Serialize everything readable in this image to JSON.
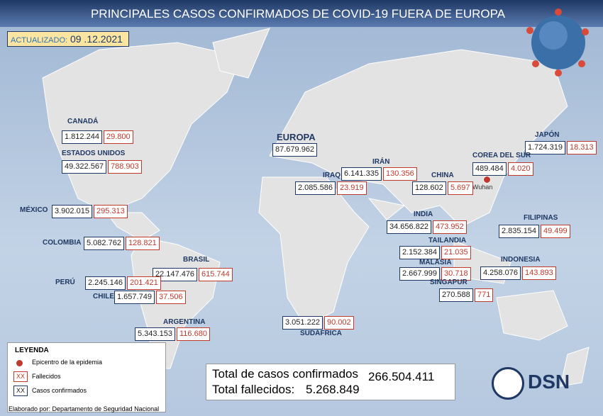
{
  "header": {
    "title": "PRINCIPALES CASOS CONFIRMADOS DE COVID-19 FUERA DE EUROPA",
    "updated_label": "ACTUALIZADO:",
    "updated_date": "09 .12.2021"
  },
  "countries": [
    {
      "name": "CANADÁ",
      "confirmed": "1.812.244",
      "deaths": "29.800"
    },
    {
      "name": "ESTADOS UNIDOS",
      "confirmed": "49.322.567",
      "deaths": "788.903"
    },
    {
      "name": "MÉXICO",
      "confirmed": "3.902.015",
      "deaths": "295.313"
    },
    {
      "name": "COLOMBIA",
      "confirmed": "5.082.762",
      "deaths": "128.821"
    },
    {
      "name": "BRASIL",
      "confirmed": "22.147.476",
      "deaths": "615.744"
    },
    {
      "name": "PERÚ",
      "confirmed": "2.245.146",
      "deaths": "201.421"
    },
    {
      "name": "CHILE",
      "confirmed": "1.657.749",
      "deaths": "37.506"
    },
    {
      "name": "ARGENTINA",
      "confirmed": "5.343.153",
      "deaths": "116.680"
    },
    {
      "name": "EUROPA",
      "confirmed": "87.679.962"
    },
    {
      "name": "IRÁN",
      "confirmed": "6.141.335",
      "deaths": "130.356"
    },
    {
      "name": "IRAQ",
      "confirmed": "2.085.586",
      "deaths": "23.919"
    },
    {
      "name": "CHINA",
      "confirmed": "128.602",
      "deaths": "5.697"
    },
    {
      "name": "JAPÓN",
      "confirmed": "1.724.319",
      "deaths": "18.313"
    },
    {
      "name": "COREA DEL SUR",
      "confirmed": "489.484",
      "deaths": "4.020"
    },
    {
      "name": "INDIA",
      "confirmed": "34.656.822",
      "deaths": "473.952"
    },
    {
      "name": "FILIPINAS",
      "confirmed": "2.835.154",
      "deaths": "49.499"
    },
    {
      "name": "TAILANDIA",
      "confirmed": "2.152.384",
      "deaths": "21.035"
    },
    {
      "name": "MALASIA",
      "confirmed": "2.667.999",
      "deaths": "30.718"
    },
    {
      "name": "INDONESIA",
      "confirmed": "4.258.076",
      "deaths": "143.893"
    },
    {
      "name": "SINGAPUR",
      "confirmed": "270.588",
      "deaths": "771"
    },
    {
      "name": "SUDÁFRICA",
      "confirmed": "3.051.222",
      "deaths": "90.002"
    }
  ],
  "epicenter": "Wuhan",
  "legend": {
    "title": "LEYENDA",
    "epicenter": "Epicentro de la epidemia",
    "deaths_sample": "XX",
    "deaths": "Fallecidos",
    "confirmed_sample": "XX",
    "confirmed": "Casos confirmados"
  },
  "totals": {
    "confirmed_label": "Total de casos confirmados",
    "confirmed": "266.504.411",
    "deaths_label": "Total fallecidos:",
    "deaths": "5.268.849"
  },
  "footer": "Elaborado por: Departamento de Seguridad Nacional",
  "logo": "DSN"
}
